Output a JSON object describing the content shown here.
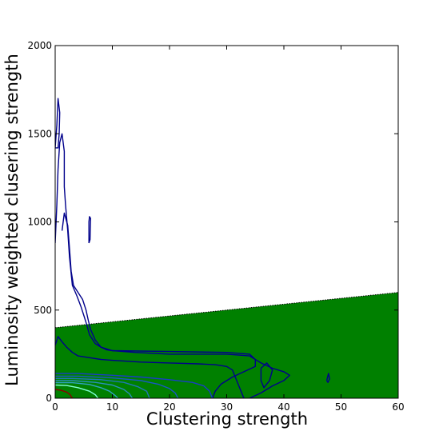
{
  "chart_data": {
    "type": "contour",
    "xlabel": "Clustering strength",
    "ylabel": "Luminosity weighted clusering strength",
    "xlim": [
      0,
      60
    ],
    "ylim": [
      0,
      2000
    ],
    "xticks": [
      0,
      10,
      20,
      30,
      40,
      50,
      60
    ],
    "yticks": [
      0,
      500,
      1000,
      1500,
      2000
    ],
    "grid": false,
    "shaded_region": {
      "color": "#008000",
      "boundary_line": [
        [
          0,
          400
        ],
        [
          60,
          600
        ]
      ],
      "boundary_style": "dotted"
    },
    "contours": [
      {
        "level": 1,
        "color": "#00008b",
        "paths": [
          [
            [
              0,
              880
            ],
            [
              0.3,
              1100
            ],
            [
              0.5,
              1300
            ],
            [
              0.8,
              1450
            ],
            [
              1.2,
              1500
            ],
            [
              1.6,
              1400
            ],
            [
              1.6,
              1200
            ],
            [
              1.8,
              1100
            ],
            [
              2.2,
              950
            ],
            [
              2.5,
              800
            ],
            [
              3,
              640
            ],
            [
              3.8,
              580
            ],
            [
              4.5,
              520
            ],
            [
              5,
              470
            ],
            [
              5.5,
              420
            ],
            [
              6,
              360
            ],
            [
              7,
              310
            ],
            [
              8,
              290
            ],
            [
              9,
              275
            ],
            [
              10,
              270
            ],
            [
              20,
              265
            ],
            [
              30,
              260
            ],
            [
              34,
              250
            ],
            [
              35,
              220
            ],
            [
              35,
              180
            ],
            [
              33,
              150
            ],
            [
              31,
              120
            ],
            [
              29,
              80
            ],
            [
              28,
              40
            ],
            [
              27.5,
              0
            ]
          ],
          [
            [
              0,
              1420
            ],
            [
              0.3,
              1550
            ],
            [
              0.5,
              1700
            ],
            [
              0.8,
              1620
            ],
            [
              0.7,
              1500
            ],
            [
              0.5,
              1420
            ],
            [
              0,
              1420
            ]
          ],
          [
            [
              5.9,
              880
            ],
            [
              6.1,
              900
            ],
            [
              6.2,
              1020
            ],
            [
              6.0,
              1030
            ],
            [
              5.9,
              1000
            ],
            [
              5.9,
              880
            ]
          ],
          [
            [
              1.2,
              950
            ],
            [
              1.6,
              1050
            ],
            [
              2.2,
              980
            ],
            [
              2.5,
              850
            ],
            [
              2.8,
              720
            ],
            [
              3.2,
              640
            ],
            [
              4,
              600
            ],
            [
              4.8,
              560
            ],
            [
              5.4,
              500
            ],
            [
              5.8,
              440
            ],
            [
              6.2,
              390
            ],
            [
              7,
              330
            ],
            [
              8,
              290
            ],
            [
              10,
              270
            ],
            [
              14,
              260
            ],
            [
              20,
              250
            ],
            [
              30,
              250
            ],
            [
              34,
              240
            ],
            [
              36,
              200
            ],
            [
              38,
              170
            ],
            [
              40,
              150
            ],
            [
              41,
              130
            ],
            [
              40,
              100
            ],
            [
              38,
              70
            ],
            [
              36,
              30
            ],
            [
              34,
              0
            ]
          ],
          [
            [
              36,
              170
            ],
            [
              37,
              200
            ],
            [
              38,
              160
            ],
            [
              37.5,
              100
            ],
            [
              36.5,
              60
            ],
            [
              36,
              100
            ],
            [
              36,
              170
            ]
          ],
          [
            [
              47.5,
              100
            ],
            [
              47.8,
              140
            ],
            [
              48,
              110
            ],
            [
              47.7,
              90
            ],
            [
              47.5,
              100
            ]
          ]
        ]
      },
      {
        "level": 2,
        "color": "#00008b",
        "paths": [
          [
            [
              0,
              300
            ],
            [
              0.5,
              350
            ],
            [
              1.2,
              320
            ],
            [
              2,
              290
            ],
            [
              3,
              260
            ],
            [
              4,
              240
            ],
            [
              6,
              230
            ],
            [
              8,
              220
            ],
            [
              10,
              215
            ],
            [
              15,
              205
            ],
            [
              20,
              200
            ],
            [
              25,
              195
            ],
            [
              28,
              190
            ],
            [
              30,
              180
            ],
            [
              31,
              160
            ],
            [
              31.5,
              120
            ],
            [
              32,
              80
            ],
            [
              33,
              0
            ]
          ]
        ]
      },
      {
        "level": 3,
        "color": "#1a3cc8",
        "paths": [
          [
            [
              0,
              140
            ],
            [
              4,
              140
            ],
            [
              10,
              130
            ],
            [
              15,
              120
            ],
            [
              20,
              105
            ],
            [
              24,
              90
            ],
            [
              26,
              70
            ],
            [
              27,
              40
            ],
            [
              27.5,
              0
            ]
          ]
        ]
      },
      {
        "level": 4,
        "color": "#1a56c8",
        "paths": [
          [
            [
              0,
              125
            ],
            [
              4,
              125
            ],
            [
              10,
              115
            ],
            [
              15,
              100
            ],
            [
              18,
              80
            ],
            [
              20,
              55
            ],
            [
              21,
              30
            ],
            [
              21.5,
              0
            ]
          ]
        ]
      },
      {
        "level": 5,
        "color": "#1f78b4",
        "paths": [
          [
            [
              0,
              112
            ],
            [
              3,
              112
            ],
            [
              8,
              105
            ],
            [
              12,
              90
            ],
            [
              14.5,
              65
            ],
            [
              16,
              40
            ],
            [
              16.5,
              0
            ]
          ]
        ]
      },
      {
        "level": 6,
        "color": "#2a8fbd",
        "paths": [
          [
            [
              0,
              100
            ],
            [
              3,
              100
            ],
            [
              7,
              90
            ],
            [
              10,
              75
            ],
            [
              12,
              50
            ],
            [
              13,
              25
            ],
            [
              13.5,
              0
            ]
          ]
        ]
      },
      {
        "level": 7,
        "color": "#2fa3c0",
        "paths": [
          [
            [
              0,
              88
            ],
            [
              3,
              88
            ],
            [
              6,
              78
            ],
            [
              8,
              60
            ],
            [
              9.5,
              40
            ],
            [
              10.5,
              15
            ],
            [
              11,
              0
            ]
          ]
        ]
      },
      {
        "level": 8,
        "color": "#7fffd4",
        "paths": [
          [
            [
              0,
              75
            ],
            [
              2,
              72
            ],
            [
              4,
              60
            ],
            [
              6,
              40
            ],
            [
              7,
              20
            ],
            [
              7.5,
              0
            ]
          ]
        ]
      },
      {
        "level": 9,
        "color": "#8b0000",
        "paths": [
          [
            [
              0,
              50
            ],
            [
              1,
              45
            ],
            [
              2,
              35
            ],
            [
              2.6,
              20
            ],
            [
              3,
              0
            ]
          ]
        ]
      }
    ]
  }
}
